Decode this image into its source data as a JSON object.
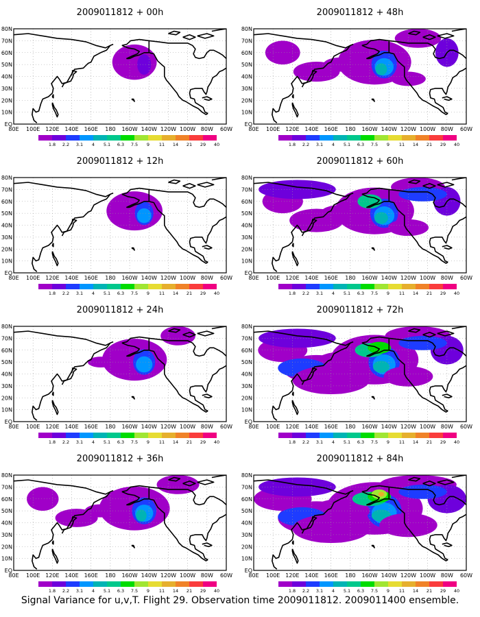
{
  "caption": "Signal Variance for u,v,T. Flight 29. Observation time 2009011812. 2009011400 ensemble.",
  "x_axis_labels": [
    "80E",
    "100E",
    "120E",
    "140E",
    "160E",
    "180",
    "160W",
    "140W",
    "120W",
    "100W",
    "80W",
    "60W"
  ],
  "y_axis_labels": [
    "EQ",
    "10N",
    "20N",
    "30N",
    "40N",
    "50N",
    "60N",
    "70N",
    "80N"
  ],
  "colorbar": {
    "labels": [
      "1.8",
      "2.2",
      "3.1",
      "4",
      "5.1",
      "6.3",
      "7.5",
      "9",
      "11",
      "14",
      "21",
      "29",
      "40"
    ],
    "colors": [
      "#a000c8",
      "#6e00dc",
      "#1e3cff",
      "#0096ff",
      "#00b4b4",
      "#00c88c",
      "#00dc00",
      "#a0e632",
      "#e6dc32",
      "#e6af2d",
      "#f08228",
      "#fa3c3c",
      "#f00082"
    ]
  },
  "panels": [
    {
      "title": "2009011812 + 00h",
      "intensity": 0.1
    },
    {
      "title": "2009011812 + 12h",
      "intensity": 0.3
    },
    {
      "title": "2009011812 + 24h",
      "intensity": 0.45
    },
    {
      "title": "2009011812 + 36h",
      "intensity": 0.55
    },
    {
      "title": "2009011812 + 48h",
      "intensity": 0.6
    },
    {
      "title": "2009011812 + 60h",
      "intensity": 0.7
    },
    {
      "title": "2009011812 + 72h",
      "intensity": 0.85
    },
    {
      "title": "2009011812 + 84h",
      "intensity": 1.0
    }
  ]
}
